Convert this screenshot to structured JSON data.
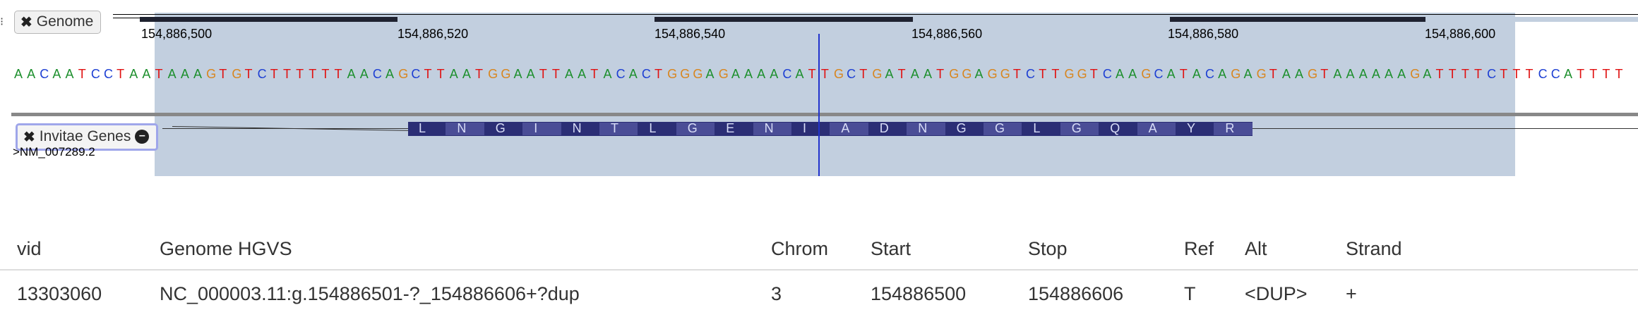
{
  "genome_track": {
    "tab_label": "Genome",
    "ticks": [
      "154,886,500",
      "154,886,520",
      "154,886,540",
      "154,886,560",
      "154,886,580",
      "154,886,600"
    ],
    "sequence": "AACAATCCTAATAAAGTGTCTTTTTTAACAGCTTAATGGAATTAATACACTGGGAGAAAACATTGCTGATAATGGAGGTCTTGGTCAAGCATACAGAGTAAGTAAAAAAGATTTTCTTTCCATTTT",
    "base_colors": {
      "A": "#1c8f2c",
      "C": "#1d3fd3",
      "G": "#d8861f",
      "T": "#e01010"
    }
  },
  "genes_track": {
    "tab_label": "Invitae Genes",
    "transcript": ">NM_007289.2",
    "amino_acids": [
      "L",
      "N",
      "G",
      "I",
      "N",
      "T",
      "L",
      "G",
      "E",
      "N",
      "I",
      "A",
      "D",
      "N",
      "G",
      "G",
      "L",
      "G",
      "Q",
      "A",
      "Y",
      "R"
    ]
  },
  "table": {
    "headers": [
      "vid",
      "Genome HGVS",
      "Chrom",
      "Start",
      "Stop",
      "Ref",
      "Alt",
      "Strand"
    ],
    "rows": [
      [
        "13303060",
        "NC_000003.11:g.154886501-?_154886606+?dup",
        "3",
        "154886500",
        "154886606",
        "T",
        "<DUP>",
        "+"
      ]
    ]
  }
}
